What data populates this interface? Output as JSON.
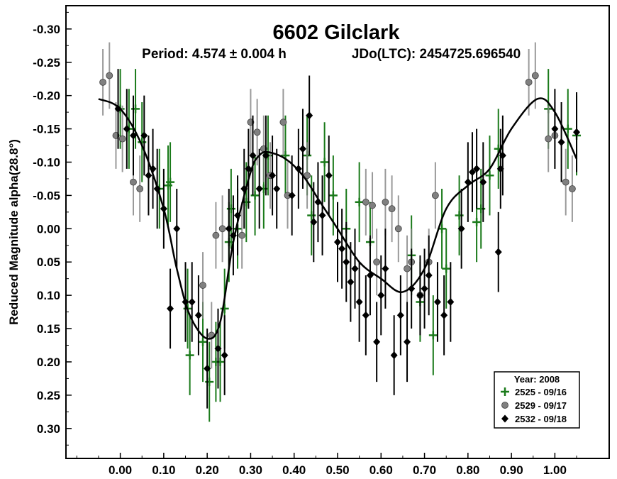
{
  "chart_data": {
    "type": "scatter",
    "title": "6602 Gilclark",
    "subtitle_period": "Period: 4.574 ± 0.004 h",
    "subtitle_epoch": "JDo(LTC): 2454725.696540",
    "ylabel": "Reduced Magnitude alpha(28.8°)",
    "xlabel": "",
    "xlim": [
      -0.125,
      1.125
    ],
    "ylim": [
      -0.335,
      0.345
    ],
    "y_inverted": true,
    "grid": false,
    "legend_position": "bottom-right",
    "x_ticks": [
      "0.00",
      "0.10",
      "0.20",
      "0.30",
      "0.40",
      "0.50",
      "0.60",
      "0.70",
      "0.80",
      "0.90",
      "1.00"
    ],
    "x_tick_values": [
      0,
      0.1,
      0.2,
      0.3,
      0.4,
      0.5,
      0.6,
      0.7,
      0.8,
      0.9,
      1.0
    ],
    "y_ticks": [
      "-0.30",
      "-0.25",
      "-0.20",
      "-0.15",
      "-0.10",
      "-0.05",
      "0.00",
      "0.05",
      "0.10",
      "0.15",
      "0.20",
      "0.25",
      "0.30"
    ],
    "y_tick_values": [
      -0.3,
      -0.25,
      -0.2,
      -0.15,
      -0.1,
      -0.05,
      0.0,
      0.05,
      0.1,
      0.15,
      0.2,
      0.25,
      0.3
    ],
    "legend_title": "Year: 2008",
    "series": [
      {
        "name": "2525 - 09/16",
        "marker": "plus",
        "color": "#1a7a1a",
        "err": 0.06,
        "points": [
          [
            0.0,
            -0.18
          ],
          [
            0.02,
            -0.15
          ],
          [
            0.035,
            -0.18
          ],
          [
            0.05,
            -0.13
          ],
          [
            0.09,
            -0.06
          ],
          [
            0.11,
            -0.065
          ],
          [
            0.115,
            -0.07
          ],
          [
            0.155,
            0.12
          ],
          [
            0.16,
            0.19
          ],
          [
            0.19,
            0.17
          ],
          [
            0.205,
            0.23
          ],
          [
            0.22,
            0.2
          ],
          [
            0.23,
            0.2
          ],
          [
            0.24,
            0.12
          ],
          [
            0.25,
            0.02
          ],
          [
            0.255,
            -0.03
          ],
          [
            0.27,
            0.0
          ],
          [
            0.29,
            -0.04
          ],
          [
            0.31,
            -0.05
          ],
          [
            0.33,
            -0.06
          ],
          [
            0.34,
            -0.11
          ],
          [
            0.38,
            -0.11
          ],
          [
            0.43,
            -0.11
          ],
          [
            0.44,
            -0.02
          ],
          [
            0.47,
            -0.1
          ],
          [
            0.49,
            -0.05
          ],
          [
            0.52,
            0.0
          ],
          [
            0.55,
            -0.04
          ],
          [
            0.575,
            0.02
          ],
          [
            0.67,
            0.04
          ],
          [
            0.69,
            0.11
          ],
          [
            0.72,
            0.16
          ],
          [
            0.74,
            0.0
          ],
          [
            0.75,
            0.06
          ],
          [
            0.78,
            -0.02
          ],
          [
            0.82,
            -0.01
          ],
          [
            0.83,
            -0.03
          ],
          [
            0.85,
            -0.08
          ],
          [
            0.87,
            -0.12
          ],
          [
            0.985,
            -0.18
          ],
          [
            1.03,
            -0.15
          ],
          [
            1.05,
            -0.14
          ]
        ]
      },
      {
        "name": "2529 - 09/17",
        "marker": "circle",
        "color": "#808080",
        "err": 0.05,
        "points": [
          [
            -0.04,
            -0.22
          ],
          [
            -0.025,
            -0.23
          ],
          [
            -0.01,
            -0.14
          ],
          [
            0.005,
            -0.135
          ],
          [
            0.03,
            -0.07
          ],
          [
            0.045,
            -0.06
          ],
          [
            0.19,
            0.085
          ],
          [
            0.21,
            0.16
          ],
          [
            0.22,
            0.01
          ],
          [
            0.235,
            0.0
          ],
          [
            0.28,
            0.01
          ],
          [
            0.3,
            -0.16
          ],
          [
            0.315,
            -0.145
          ],
          [
            0.33,
            -0.12
          ],
          [
            0.345,
            -0.08
          ],
          [
            0.375,
            -0.16
          ],
          [
            0.385,
            -0.05
          ],
          [
            0.43,
            -0.08
          ],
          [
            0.565,
            -0.04
          ],
          [
            0.58,
            -0.035
          ],
          [
            0.59,
            0.05
          ],
          [
            0.61,
            -0.04
          ],
          [
            0.625,
            -0.03
          ],
          [
            0.64,
            0.0
          ],
          [
            0.66,
            0.06
          ],
          [
            0.67,
            0.05
          ],
          [
            0.69,
            0.1
          ],
          [
            0.71,
            0.05
          ],
          [
            0.725,
            -0.05
          ],
          [
            0.94,
            -0.22
          ],
          [
            0.955,
            -0.23
          ],
          [
            0.985,
            -0.135
          ],
          [
            1.0,
            -0.14
          ],
          [
            1.025,
            -0.07
          ],
          [
            1.04,
            -0.06
          ]
        ]
      },
      {
        "name": "2532 - 09/18",
        "marker": "diamond",
        "color": "#000000",
        "err": 0.06,
        "points": [
          [
            -0.005,
            -0.18
          ],
          [
            0.015,
            -0.15
          ],
          [
            0.03,
            -0.14
          ],
          [
            0.055,
            -0.14
          ],
          [
            0.065,
            -0.08
          ],
          [
            0.075,
            -0.09
          ],
          [
            0.085,
            -0.06
          ],
          [
            0.1,
            -0.03
          ],
          [
            0.115,
            0.12
          ],
          [
            0.13,
            0.0
          ],
          [
            0.15,
            0.11
          ],
          [
            0.165,
            0.11
          ],
          [
            0.18,
            0.13
          ],
          [
            0.2,
            0.21
          ],
          [
            0.225,
            0.18
          ],
          [
            0.24,
            0.19
          ],
          [
            0.25,
            0.0
          ],
          [
            0.26,
            0.01
          ],
          [
            0.27,
            -0.02
          ],
          [
            0.285,
            -0.06
          ],
          [
            0.295,
            -0.09
          ],
          [
            0.305,
            -0.11
          ],
          [
            0.32,
            -0.06
          ],
          [
            0.335,
            -0.11
          ],
          [
            0.35,
            -0.08
          ],
          [
            0.36,
            -0.06
          ],
          [
            0.395,
            -0.05
          ],
          [
            0.41,
            -0.09
          ],
          [
            0.42,
            -0.12
          ],
          [
            0.435,
            -0.17
          ],
          [
            0.445,
            -0.01
          ],
          [
            0.455,
            -0.04
          ],
          [
            0.465,
            -0.02
          ],
          [
            0.48,
            -0.08
          ],
          [
            0.5,
            0.02
          ],
          [
            0.51,
            0.03
          ],
          [
            0.52,
            0.05
          ],
          [
            0.53,
            0.08
          ],
          [
            0.54,
            0.06
          ],
          [
            0.55,
            0.11
          ],
          [
            0.565,
            0.13
          ],
          [
            0.575,
            0.07
          ],
          [
            0.59,
            0.17
          ],
          [
            0.6,
            0.1
          ],
          [
            0.61,
            0.06
          ],
          [
            0.63,
            0.19
          ],
          [
            0.645,
            0.13
          ],
          [
            0.66,
            0.17
          ],
          [
            0.67,
            0.09
          ],
          [
            0.69,
            0.1
          ],
          [
            0.7,
            0.09
          ],
          [
            0.71,
            0.07
          ],
          [
            0.73,
            0.11
          ],
          [
            0.745,
            0.13
          ],
          [
            0.76,
            0.11
          ],
          [
            0.785,
            0.0
          ],
          [
            0.8,
            -0.07
          ],
          [
            0.81,
            -0.085
          ],
          [
            0.82,
            -0.09
          ],
          [
            0.835,
            -0.07
          ],
          [
            0.87,
            0.035
          ],
          [
            0.875,
            -0.09
          ],
          [
            0.88,
            -0.11
          ],
          [
            1.0,
            -0.15
          ],
          [
            1.015,
            -0.13
          ],
          [
            1.05,
            -0.145
          ]
        ]
      }
    ],
    "fit_curve": [
      [
        -0.05,
        -0.195
      ],
      [
        0.0,
        -0.18
      ],
      [
        0.05,
        -0.125
      ],
      [
        0.1,
        -0.03
      ],
      [
        0.13,
        0.06
      ],
      [
        0.16,
        0.13
      ],
      [
        0.2,
        0.165
      ],
      [
        0.23,
        0.14
      ],
      [
        0.26,
        0.02
      ],
      [
        0.3,
        -0.085
      ],
      [
        0.32,
        -0.11
      ],
      [
        0.34,
        -0.115
      ],
      [
        0.38,
        -0.105
      ],
      [
        0.42,
        -0.08
      ],
      [
        0.46,
        -0.04
      ],
      [
        0.5,
        0.0
      ],
      [
        0.55,
        0.05
      ],
      [
        0.6,
        0.075
      ],
      [
        0.65,
        0.095
      ],
      [
        0.7,
        0.06
      ],
      [
        0.75,
        -0.03
      ],
      [
        0.8,
        -0.065
      ],
      [
        0.85,
        -0.09
      ],
      [
        0.9,
        -0.15
      ],
      [
        0.96,
        -0.195
      ],
      [
        1.0,
        -0.175
      ],
      [
        1.05,
        -0.105
      ]
    ]
  }
}
